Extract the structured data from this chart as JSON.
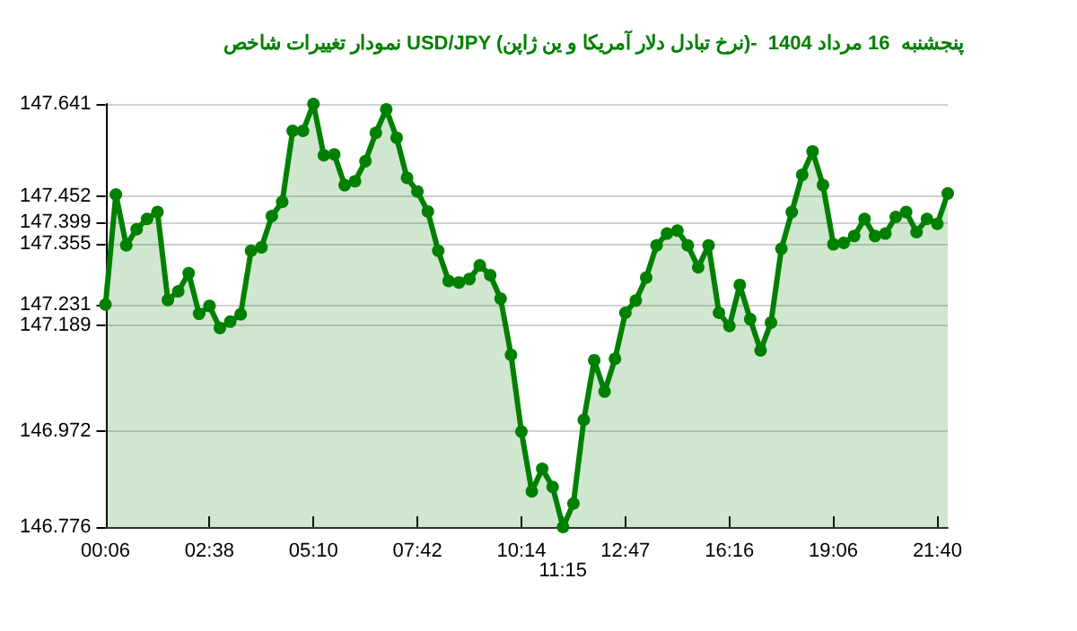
{
  "chart_data": {
    "type": "area",
    "title": "نمودار تغییرات شاخص USD/JPY (نرخ تبادل دلار آمریکا و ین ژاپن)-  پنجشنبه  16 مرداد 1404",
    "categories": [
      "00:06",
      null,
      null,
      null,
      null,
      null,
      null,
      null,
      null,
      null,
      "02:38",
      null,
      null,
      null,
      null,
      null,
      null,
      null,
      null,
      null,
      "05:10",
      null,
      null,
      null,
      null,
      null,
      null,
      null,
      null,
      null,
      "07:42",
      null,
      null,
      null,
      null,
      null,
      null,
      null,
      null,
      null,
      "10:14",
      null,
      null,
      null,
      "11:15",
      null,
      null,
      null,
      null,
      null,
      "12:47",
      null,
      null,
      null,
      null,
      null,
      null,
      null,
      null,
      null,
      "16:16",
      null,
      null,
      null,
      null,
      null,
      null,
      null,
      null,
      null,
      "19:06",
      null,
      null,
      null,
      null,
      null,
      null,
      null,
      null,
      null,
      "21:40",
      null
    ],
    "series": [
      {
        "color": "#008000",
        "values": [
          147.231,
          147.456,
          147.352,
          147.385,
          147.406,
          147.42,
          147.24,
          147.258,
          147.295,
          147.212,
          147.228,
          147.183,
          147.196,
          147.211,
          147.341,
          147.348,
          147.412,
          147.441,
          147.586,
          147.586,
          147.641,
          147.536,
          147.538,
          147.475,
          147.483,
          147.524,
          147.582,
          147.63,
          147.572,
          147.49,
          147.462,
          147.421,
          147.341,
          147.279,
          147.276,
          147.283,
          147.311,
          147.291,
          147.243,
          147.128,
          146.971,
          146.849,
          146.895,
          146.858,
          146.776,
          146.824,
          146.995,
          147.117,
          147.053,
          147.12,
          147.214,
          147.239,
          147.286,
          147.352,
          147.376,
          147.382,
          147.352,
          147.307,
          147.352,
          147.214,
          147.187,
          147.271,
          147.201,
          147.137,
          147.194,
          147.345,
          147.42,
          147.496,
          147.544,
          147.475,
          147.354,
          147.357,
          147.371,
          147.406,
          147.371,
          147.376,
          147.41,
          147.42,
          147.379,
          147.406,
          147.396,
          147.458
        ]
      }
    ],
    "ylim": [
      146.776,
      147.641
    ],
    "yticks": [
      146.776,
      146.972,
      147.189,
      147.231,
      147.355,
      147.399,
      147.452,
      147.641
    ],
    "grid": "y",
    "marker": "circle",
    "line_style": "solid"
  }
}
